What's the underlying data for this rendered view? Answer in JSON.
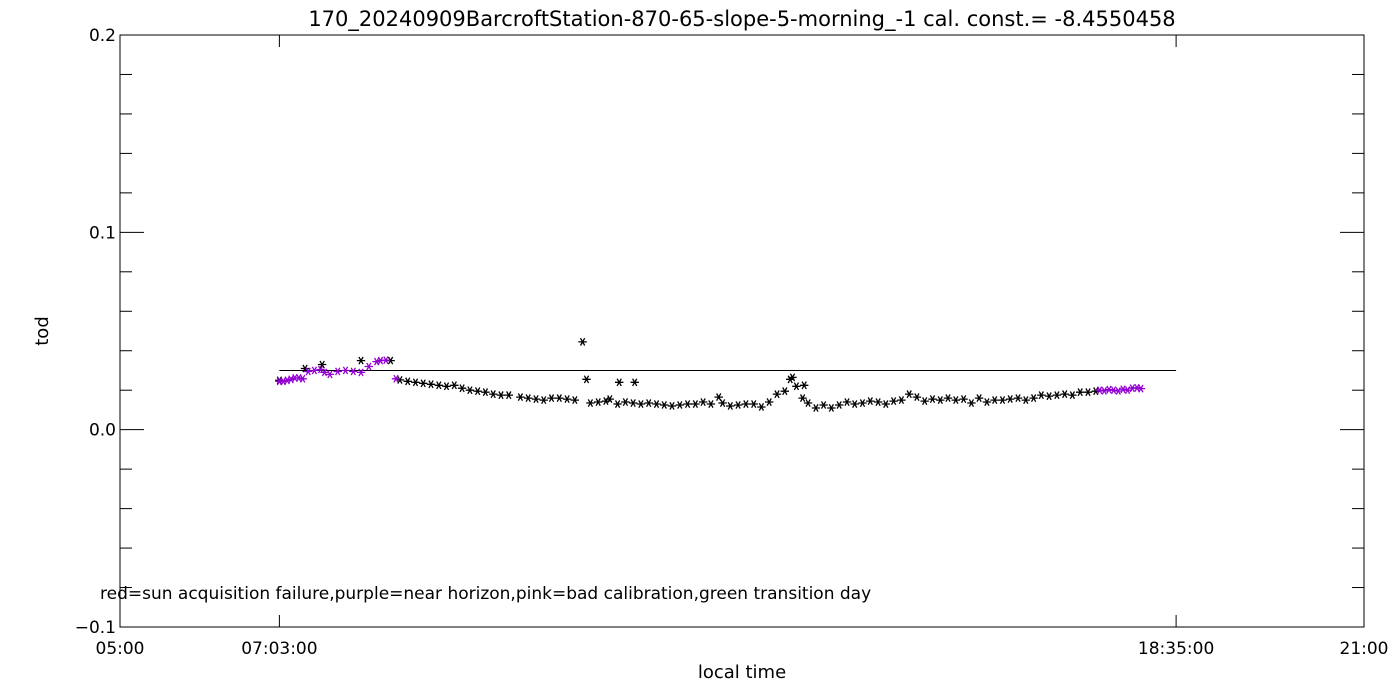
{
  "chart_data": {
    "type": "scatter",
    "title": "170_20240909BarcroftStation-870-65-slope-5-morning_-1 cal. const.= -8.4550458",
    "xlabel": "local time",
    "ylabel": "tod",
    "x_unit": "hours (local time)",
    "xlim": [
      5.0,
      21.0
    ],
    "ylim": [
      -0.1,
      0.2
    ],
    "x_ticks": [
      {
        "value": 5.0,
        "label": "05:00"
      },
      {
        "value": 7.05,
        "label": "07:03:00"
      },
      {
        "value": 18.5833,
        "label": "18:35:00"
      },
      {
        "value": 21.0,
        "label": "21:00"
      }
    ],
    "y_ticks": [
      {
        "value": -0.1,
        "label": "−0.1"
      },
      {
        "value": 0.0,
        "label": "0.0"
      },
      {
        "value": 0.1,
        "label": "0.1"
      },
      {
        "value": 0.2,
        "label": "0.2"
      }
    ],
    "reference_line": {
      "x_start": 7.05,
      "x_end": 18.5833,
      "y": 0.03
    },
    "annotation": "red=sun acquisition failure,purple=near horizon,pink=bad calibration,green transition day",
    "grid": false,
    "colors": {
      "normal": "#000000",
      "near_horizon": "#9400d3"
    },
    "series": [
      {
        "key": "near_horizon",
        "marker": "asterisk",
        "color": "#9400d3",
        "points": [
          [
            7.05,
            0.0245
          ],
          [
            7.1,
            0.0245
          ],
          [
            7.15,
            0.025
          ],
          [
            7.2,
            0.0255
          ],
          [
            7.25,
            0.0262
          ],
          [
            7.3,
            0.0262
          ],
          [
            7.35,
            0.0258
          ],
          [
            7.42,
            0.0295
          ],
          [
            7.5,
            0.03
          ],
          [
            7.58,
            0.0305
          ],
          [
            7.63,
            0.029
          ],
          [
            7.7,
            0.028
          ],
          [
            7.8,
            0.0295
          ],
          [
            7.9,
            0.03
          ],
          [
            8.0,
            0.0295
          ],
          [
            8.1,
            0.029
          ],
          [
            8.2,
            0.032
          ],
          [
            8.3,
            0.0345
          ],
          [
            8.35,
            0.035
          ],
          [
            8.42,
            0.0352
          ],
          [
            8.55,
            0.0258
          ],
          [
            17.6,
            0.02
          ],
          [
            17.66,
            0.0197
          ],
          [
            17.72,
            0.0203
          ],
          [
            17.78,
            0.02
          ],
          [
            17.84,
            0.0196
          ],
          [
            17.9,
            0.0205
          ],
          [
            17.96,
            0.02
          ],
          [
            18.02,
            0.021
          ],
          [
            18.08,
            0.0212
          ],
          [
            18.13,
            0.0208
          ]
        ]
      },
      {
        "key": "normal",
        "marker": "asterisk",
        "color": "#000000",
        "points": [
          [
            7.05,
            0.025
          ],
          [
            7.38,
            0.031
          ],
          [
            7.6,
            0.033
          ],
          [
            8.1,
            0.035
          ],
          [
            8.48,
            0.035
          ],
          [
            8.6,
            0.0252
          ],
          [
            8.7,
            0.0245
          ],
          [
            8.8,
            0.024
          ],
          [
            8.9,
            0.0235
          ],
          [
            9.0,
            0.023
          ],
          [
            9.1,
            0.0225
          ],
          [
            9.2,
            0.022
          ],
          [
            9.3,
            0.0225
          ],
          [
            9.4,
            0.021
          ],
          [
            9.5,
            0.02
          ],
          [
            9.6,
            0.0195
          ],
          [
            9.7,
            0.019
          ],
          [
            9.8,
            0.018
          ],
          [
            9.9,
            0.0175
          ],
          [
            10.0,
            0.0175
          ],
          [
            10.15,
            0.0165
          ],
          [
            10.25,
            0.016
          ],
          [
            10.35,
            0.0155
          ],
          [
            10.45,
            0.015
          ],
          [
            10.55,
            0.016
          ],
          [
            10.65,
            0.016
          ],
          [
            10.75,
            0.0155
          ],
          [
            10.85,
            0.015
          ],
          [
            10.95,
            0.0445
          ],
          [
            11.0,
            0.0255
          ],
          [
            11.05,
            0.0135
          ],
          [
            11.15,
            0.014
          ],
          [
            11.25,
            0.0145
          ],
          [
            11.3,
            0.0155
          ],
          [
            11.4,
            0.013
          ],
          [
            11.42,
            0.024
          ],
          [
            11.5,
            0.014
          ],
          [
            11.6,
            0.0135
          ],
          [
            11.62,
            0.024
          ],
          [
            11.7,
            0.013
          ],
          [
            11.8,
            0.0135
          ],
          [
            11.9,
            0.013
          ],
          [
            12.0,
            0.0125
          ],
          [
            12.1,
            0.012
          ],
          [
            12.2,
            0.0125
          ],
          [
            12.3,
            0.013
          ],
          [
            12.4,
            0.013
          ],
          [
            12.5,
            0.014
          ],
          [
            12.6,
            0.013
          ],
          [
            12.7,
            0.0165
          ],
          [
            12.75,
            0.0135
          ],
          [
            12.85,
            0.012
          ],
          [
            12.95,
            0.0125
          ],
          [
            13.05,
            0.013
          ],
          [
            13.15,
            0.013
          ],
          [
            13.25,
            0.0115
          ],
          [
            13.35,
            0.014
          ],
          [
            13.45,
            0.018
          ],
          [
            13.55,
            0.0195
          ],
          [
            13.62,
            0.0255
          ],
          [
            13.65,
            0.0265
          ],
          [
            13.7,
            0.022
          ],
          [
            13.8,
            0.0225
          ],
          [
            13.78,
            0.016
          ],
          [
            13.85,
            0.0135
          ],
          [
            13.95,
            0.011
          ],
          [
            14.05,
            0.0125
          ],
          [
            14.15,
            0.011
          ],
          [
            14.25,
            0.0125
          ],
          [
            14.35,
            0.014
          ],
          [
            14.45,
            0.013
          ],
          [
            14.55,
            0.0135
          ],
          [
            14.65,
            0.0145
          ],
          [
            14.75,
            0.014
          ],
          [
            14.85,
            0.013
          ],
          [
            14.95,
            0.0145
          ],
          [
            15.05,
            0.015
          ],
          [
            15.15,
            0.018
          ],
          [
            15.25,
            0.0165
          ],
          [
            15.35,
            0.0145
          ],
          [
            15.45,
            0.0155
          ],
          [
            15.55,
            0.015
          ],
          [
            15.65,
            0.016
          ],
          [
            15.75,
            0.015
          ],
          [
            15.85,
            0.0155
          ],
          [
            15.95,
            0.0135
          ],
          [
            16.05,
            0.016
          ],
          [
            16.15,
            0.014
          ],
          [
            16.25,
            0.015
          ],
          [
            16.35,
            0.015
          ],
          [
            16.45,
            0.0155
          ],
          [
            16.55,
            0.016
          ],
          [
            16.65,
            0.015
          ],
          [
            16.75,
            0.016
          ],
          [
            16.85,
            0.0175
          ],
          [
            16.95,
            0.017
          ],
          [
            17.05,
            0.0175
          ],
          [
            17.15,
            0.018
          ],
          [
            17.25,
            0.0175
          ],
          [
            17.35,
            0.019
          ],
          [
            17.45,
            0.019
          ],
          [
            17.55,
            0.0195
          ]
        ]
      }
    ]
  }
}
